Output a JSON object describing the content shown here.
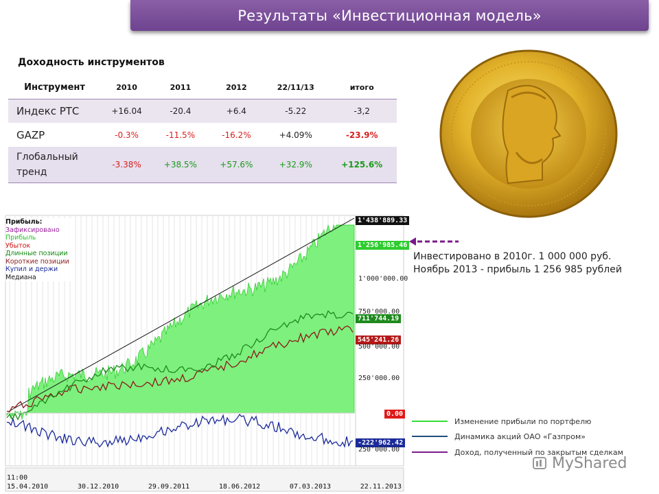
{
  "header": {
    "title": "Результаты «Инвестиционная модель»"
  },
  "table": {
    "title": "Доходность инструментов",
    "columns": [
      "Инструмент",
      "2010",
      "2011",
      "2012",
      "22/11/13",
      "итого"
    ],
    "rows": [
      {
        "name": "Индекс РТС",
        "values": [
          "+16.04",
          "-20.4",
          "+6.4",
          "-5.22",
          "-3,2"
        ]
      },
      {
        "name": "GAZP",
        "values": [
          "-0.3%",
          "-11.5%",
          "-16.2%",
          "+4.09%",
          "-23.9%"
        ]
      },
      {
        "name": "Глобальный тренд",
        "values": [
          "-3.38%",
          "+38.5%",
          "+57.6%",
          "+32.9%",
          "+125.6%"
        ]
      }
    ]
  },
  "chart_legend": {
    "header": "Прибыль:",
    "items": [
      {
        "label": "Зафиксировано",
        "color": "#9b1c9b"
      },
      {
        "label": "Прибыль",
        "color": "#29c229"
      },
      {
        "label": "Убыток",
        "color": "#cc1111"
      },
      {
        "label": "Длинные позиции",
        "color": "#118811"
      },
      {
        "label": "Короткие позиции",
        "color": "#8b1a1a"
      },
      {
        "label": "Купил и держи",
        "color": "#1a2a9a"
      },
      {
        "label": "Медиана",
        "color": "#111111"
      }
    ]
  },
  "price_tags": {
    "top": "1'438'889.33",
    "realized": "1'256'985.46",
    "long": "711'744.19",
    "short": "545'241.26",
    "zero": "0.00",
    "buyhold": "-222'962.42"
  },
  "axis_labels": {
    "y1000": "1'000'000.00",
    "y750": "750'000.00",
    "y500": "500'000.00",
    "y250": "250'000.00",
    "ym250": "250'000.00"
  },
  "x_axis": {
    "time": "11:00",
    "dates": [
      "15.04.2010",
      "30.12.2010",
      "29.09.2011",
      "18.06.2012",
      "07.03.2013",
      "22.11.2013"
    ]
  },
  "note": {
    "line1": "Инвестировано в 2010г. 1 000 000 руб.",
    "line2": "Ноябрь 2013 - прибыль 1 256 985 рублей"
  },
  "bottom_legend": [
    {
      "label": "Изменение прибыли по портфелю",
      "color": "#33dd33"
    },
    {
      "label": "Динамика акций ОАО «Газпром»",
      "color": "#1f4e79"
    },
    {
      "label": "Доход, полученный по закрытым сделкам",
      "color": "#7a1a8a"
    }
  ],
  "watermark": "MyShared",
  "colors": {
    "banner": "#7b4f9b",
    "accent_red": "#d92020",
    "accent_green": "#1a9a1a"
  }
}
